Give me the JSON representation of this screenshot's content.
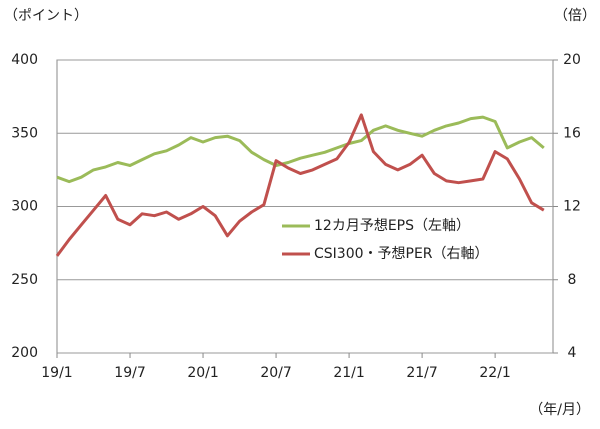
{
  "chart_data": {
    "type": "line",
    "y_label": "（ポイント）",
    "y2_label": "（倍）",
    "x_label": "（年/月）",
    "categories": [
      "19/1",
      null,
      null,
      null,
      null,
      null,
      "19/7",
      null,
      null,
      null,
      null,
      null,
      "20/1",
      null,
      null,
      null,
      null,
      null,
      "20/7",
      null,
      null,
      null,
      null,
      null,
      "21/1",
      null,
      null,
      null,
      null,
      null,
      "21/7",
      null,
      null,
      null,
      null,
      null,
      "22/1",
      null,
      null,
      null,
      null
    ],
    "series": [
      {
        "name": "12カ月予想EPS（左軸）",
        "color": "#9bbb59",
        "values": [
          320,
          317,
          320,
          325,
          327,
          330,
          328,
          332,
          336,
          338,
          342,
          347,
          344,
          347,
          348,
          345,
          337,
          332,
          328,
          330,
          333,
          335,
          337,
          340,
          343,
          345,
          352,
          355,
          352,
          350,
          348,
          352,
          355,
          357,
          360,
          361,
          358,
          340,
          344,
          347,
          340
        ]
      },
      {
        "name": "CSI300・予想PER（右軸）",
        "color": "#c0504d",
        "axis": "y2",
        "values": [
          9.3,
          10.2,
          11.0,
          11.8,
          12.6,
          11.3,
          11.0,
          11.6,
          11.5,
          11.7,
          11.3,
          11.6,
          12.0,
          11.5,
          10.4,
          11.2,
          11.7,
          12.1,
          14.5,
          14.1,
          13.8,
          14.0,
          14.3,
          14.6,
          15.5,
          17.0,
          15.0,
          14.3,
          14.0,
          14.3,
          14.8,
          13.8,
          13.4,
          13.3,
          13.4,
          13.5,
          15.0,
          14.6,
          13.5,
          12.2,
          11.8
        ]
      }
    ],
    "ylim": [
      200,
      400
    ],
    "yticks": [
      200,
      250,
      300,
      350,
      400
    ],
    "y2lim": [
      4,
      20
    ],
    "y2ticks": [
      4,
      8,
      12,
      16,
      20
    ],
    "grid": true
  }
}
